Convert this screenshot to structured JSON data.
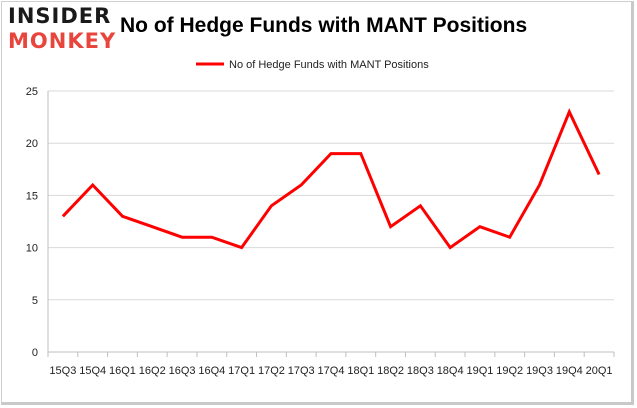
{
  "logo": {
    "line1": "INSIDER",
    "line2": "MONKEY"
  },
  "chart_data": {
    "type": "line",
    "title": "No of Hedge Funds with MANT Positions",
    "xlabel": "",
    "ylabel": "",
    "categories": [
      "15Q3",
      "15Q4",
      "16Q1",
      "16Q2",
      "16Q3",
      "16Q4",
      "17Q1",
      "17Q2",
      "17Q3",
      "17Q4",
      "18Q1",
      "18Q2",
      "18Q3",
      "18Q4",
      "19Q1",
      "19Q2",
      "19Q3",
      "19Q4",
      "20Q1"
    ],
    "series": [
      {
        "name": "No of Hedge Funds with MANT Positions",
        "values": [
          13,
          16,
          13,
          12,
          11,
          11,
          10,
          14,
          16,
          19,
          19,
          12,
          14,
          10,
          12,
          11,
          16,
          23,
          17
        ],
        "color": "#ff0000"
      }
    ],
    "ylim": [
      0,
      25
    ],
    "yticks": [
      0,
      5,
      10,
      15,
      20,
      25
    ],
    "grid": true,
    "legend_position": "top-center"
  }
}
